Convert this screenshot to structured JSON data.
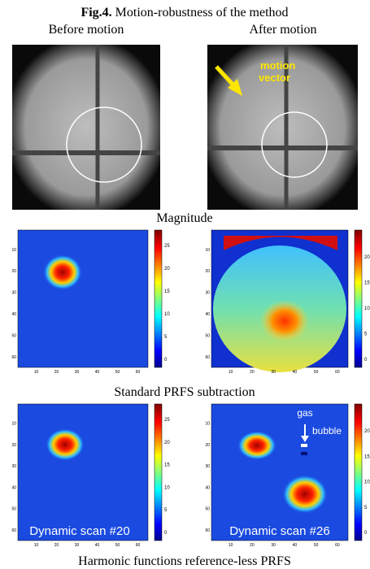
{
  "title": {
    "label": "Fig.4.",
    "text": "Motion-robustness of the method"
  },
  "columns": [
    "Before motion",
    "After motion"
  ],
  "annotations": {
    "motion": [
      "motion",
      "vector"
    ],
    "bubble": [
      "gas",
      "bubble"
    ]
  },
  "rows": [
    "Magnitude",
    "Standard PRFS subtraction",
    "Harmonic functions reference-less PRFS"
  ],
  "colorbar_ticks": {
    "left": [
      0,
      5,
      10,
      15,
      20,
      25
    ],
    "right": [
      0,
      5,
      10,
      15,
      20
    ]
  },
  "axis_ticks": [
    10,
    20,
    30,
    40,
    50,
    60
  ],
  "scan_labels": [
    "Dynamic scan #20",
    "Dynamic scan #26"
  ]
}
